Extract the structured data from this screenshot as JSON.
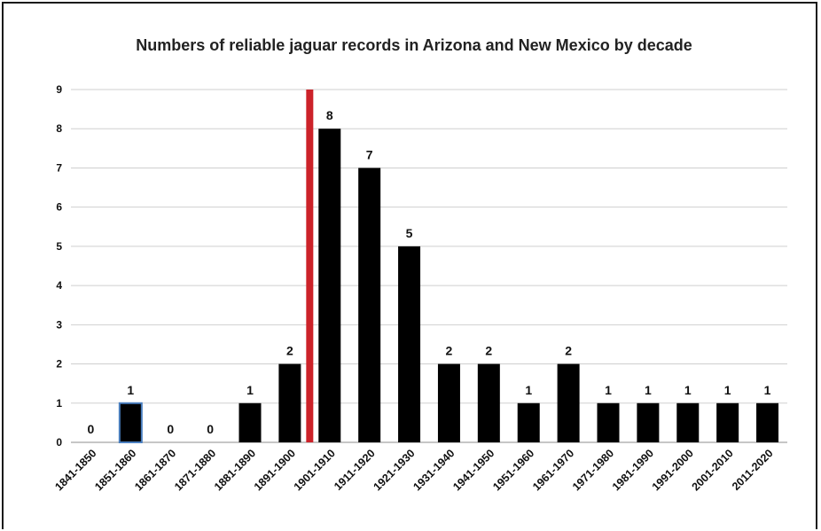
{
  "chart_data": {
    "type": "bar",
    "title": "Numbers of reliable jaguar records in Arizona and New Mexico by decade",
    "xlabel": "",
    "ylabel": "",
    "ylim": [
      0,
      9
    ],
    "yticks": [
      0,
      1,
      2,
      3,
      4,
      5,
      6,
      7,
      8,
      9
    ],
    "grid": true,
    "legend": "none",
    "categories": [
      "1841-1850",
      "1851-1860",
      "1861-1870",
      "1871-1880",
      "1881-1890",
      "1891-1900",
      "1901-1910",
      "1911-1920",
      "1921-1930",
      "1931-1940",
      "1941-1950",
      "1951-1960",
      "1961-1970",
      "1971-1980",
      "1981-1990",
      "1991-2000",
      "2001-2010",
      "2011-2020"
    ],
    "values": [
      0,
      1,
      0,
      0,
      1,
      2,
      8,
      7,
      5,
      2,
      2,
      1,
      2,
      1,
      1,
      1,
      1,
      1
    ],
    "data_labels": [
      "0",
      "1",
      "0",
      "0",
      "1",
      "2",
      "8",
      "7",
      "5",
      "2",
      "2",
      "1",
      "2",
      "1",
      "1",
      "1",
      "1",
      "1"
    ],
    "bar_color": "#000000",
    "highlight_bar": {
      "category": "1851-1860",
      "outline_color": "#4a7fc0"
    },
    "marker_line": {
      "between": [
        "1891-1900",
        "1901-1910"
      ],
      "value": 9,
      "color": "#cc2229"
    }
  }
}
